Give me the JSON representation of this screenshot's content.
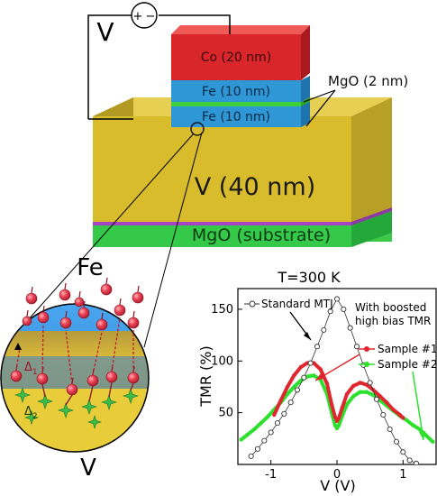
{
  "stack": {
    "voltage_label": "V",
    "plus_sign": "+",
    "minus_sign": "−",
    "layers": {
      "co": "Co (20 nm)",
      "fe_top": "Fe (10 nm)",
      "fe_bottom": "Fe (10 nm)",
      "v": "V (40 nm)",
      "substrate": "MgO (substrate)"
    },
    "mgo_label": "MgO (2 nm)",
    "colors": {
      "co": "#d9262b",
      "fe": "#2f97d6",
      "mgo": "#3ccf3a",
      "v": "#d8bc2c",
      "substrate": "#35c94a",
      "circuit": "#000000"
    }
  },
  "inset": {
    "top_label": "Fe",
    "bottom_label": "V",
    "delta1": "Δ",
    "delta1_sub": "1",
    "delta2": "Δ",
    "delta2_sub": "2",
    "icons": [
      "electron-sphere-icon",
      "spin-arrow-icon",
      "star-defect-icon",
      "dashed-tunneling-arrow-icon"
    ],
    "colors": {
      "fe": "#2f8fe0",
      "barrier": "#c9a83a",
      "v": "#e8cc3a",
      "electron": "#e83a4a",
      "defect": "#3dbb4a"
    }
  },
  "chart_data": {
    "type": "scatter",
    "title": "T=300 K",
    "xlabel": "V (V)",
    "ylabel": "TMR (%)",
    "xlim": [
      -1.5,
      1.5
    ],
    "ylim": [
      0,
      170
    ],
    "xticks": [
      -1,
      0,
      1
    ],
    "xtick_labels": [
      "-1",
      "0",
      "1"
    ],
    "yticks": [
      50,
      100,
      150
    ],
    "ytick_labels": [
      "50",
      "100",
      "150"
    ],
    "annotation_header": "With boosted\nhigh bias TMR",
    "series": [
      {
        "name": "Standard MTJ",
        "color": "#333333",
        "marker": "open-circle",
        "x": [
          -1.3,
          -1.2,
          -1.1,
          -1.0,
          -0.9,
          -0.8,
          -0.7,
          -0.6,
          -0.5,
          -0.4,
          -0.3,
          -0.2,
          -0.1,
          0.0,
          0.1,
          0.2,
          0.3,
          0.4,
          0.5,
          0.6,
          0.7,
          0.8,
          0.9,
          1.0,
          1.1,
          1.2
        ],
        "y": [
          8,
          15,
          23,
          31,
          40,
          49,
          60,
          72,
          84,
          98,
          114,
          130,
          148,
          160,
          150,
          132,
          114,
          96,
          79,
          63,
          48,
          34,
          22,
          12,
          4,
          1
        ]
      },
      {
        "name": "Sample #1",
        "color": "#e0262f",
        "marker": "filled-circle",
        "x": [
          -0.95,
          -0.85,
          -0.75,
          -0.65,
          -0.55,
          -0.45,
          -0.35,
          -0.25,
          -0.15,
          -0.08,
          -0.03,
          0.0,
          0.03,
          0.08,
          0.15,
          0.25,
          0.35,
          0.45,
          0.55,
          0.65,
          0.75,
          0.85,
          0.95,
          1.0
        ],
        "y": [
          48,
          62,
          75,
          86,
          94,
          98,
          98,
          92,
          78,
          58,
          46,
          42,
          45,
          55,
          68,
          76,
          79,
          77,
          72,
          66,
          60,
          53,
          48,
          45
        ]
      },
      {
        "name": "Sample #2",
        "color": "#2ee02e",
        "marker": "filled-circle",
        "x": [
          -1.45,
          -1.35,
          -1.25,
          -1.15,
          -1.05,
          -0.95,
          -0.85,
          -0.75,
          -0.65,
          -0.55,
          -0.45,
          -0.35,
          -0.25,
          -0.15,
          -0.08,
          -0.03,
          0.0,
          0.03,
          0.08,
          0.15,
          0.25,
          0.35,
          0.45,
          0.55,
          0.65,
          0.75,
          0.85,
          0.95,
          1.05,
          1.15,
          1.25,
          1.35,
          1.45
        ],
        "y": [
          24,
          29,
          34,
          40,
          46,
          53,
          60,
          68,
          75,
          81,
          85,
          86,
          82,
          68,
          50,
          38,
          35,
          38,
          47,
          58,
          66,
          70,
          70,
          67,
          62,
          57,
          52,
          47,
          43,
          38,
          34,
          28,
          22
        ]
      }
    ]
  }
}
